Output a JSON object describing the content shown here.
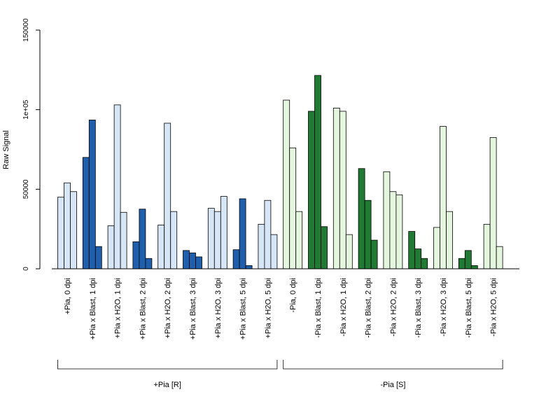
{
  "chart_data": {
    "type": "bar",
    "ylabel": "Raw Signal",
    "ylim": [
      0,
      150000
    ],
    "yticks": [
      0,
      50000,
      100000,
      150000
    ],
    "ytick_labels": [
      "0",
      "50000",
      "1e+05",
      "150000"
    ],
    "grid": false,
    "bars_per_category": 3,
    "categories": [
      "+Pia, 0 dpi",
      "+Pia x Blast, 1 dpi",
      "+Pia x H2O, 1 dpi",
      "+Pia x Blast, 2 dpi",
      "+Pia x H2O, 2 dpi",
      "+Pia x Blast, 3 dpi",
      "+Pia x H2O, 3 dpi",
      "+Pia x Blast, 5 dpi",
      "+Pia x H2O, 5 dpi",
      "-Pia, 0 dpi",
      "-Pia x Blast, 1 dpi",
      "-Pia x H2O, 1 dpi",
      "-Pia x Blast, 2 dpi",
      "-Pia x H2O, 2 dpi",
      "-Pia x Blast, 3 dpi",
      "-Pia x H2O, 3 dpi",
      "-Pia x Blast, 5 dpi",
      "-Pia x H2O, 5 dpi"
    ],
    "values": [
      [
        45000,
        54000,
        48500
      ],
      [
        70000,
        93500,
        14000
      ],
      [
        27000,
        103000,
        35500
      ],
      [
        17000,
        37500,
        6500
      ],
      [
        27500,
        91500,
        36000
      ],
      [
        11500,
        10000,
        7500
      ],
      [
        38000,
        36000,
        45500
      ],
      [
        12000,
        44000,
        2000
      ],
      [
        28000,
        43000,
        21500
      ],
      [
        106000,
        76000,
        36000
      ],
      [
        99000,
        121500,
        26500
      ],
      [
        101000,
        99000,
        21500
      ],
      [
        63000,
        43000,
        18000
      ],
      [
        61000,
        48500,
        46500
      ],
      [
        23500,
        12500,
        6500
      ],
      [
        26000,
        89500,
        36000
      ],
      [
        6500,
        11500,
        2000
      ],
      [
        28000,
        82500,
        14000
      ]
    ],
    "bar_colors": [
      "#d6e6f6",
      "#1f5fac",
      "#d6e6f6",
      "#1f5fac",
      "#d6e6f6",
      "#1f5fac",
      "#d6e6f6",
      "#1f5fac",
      "#d6e6f6",
      "#e5f6df",
      "#217a33",
      "#e5f6df",
      "#217a33",
      "#e5f6df",
      "#217a33",
      "#e5f6df",
      "#217a33",
      "#e5f6df"
    ],
    "groups": [
      {
        "label": "+Pia [R]",
        "first": 0,
        "last": 8
      },
      {
        "label": "-Pia [S]",
        "first": 9,
        "last": 17
      }
    ]
  }
}
